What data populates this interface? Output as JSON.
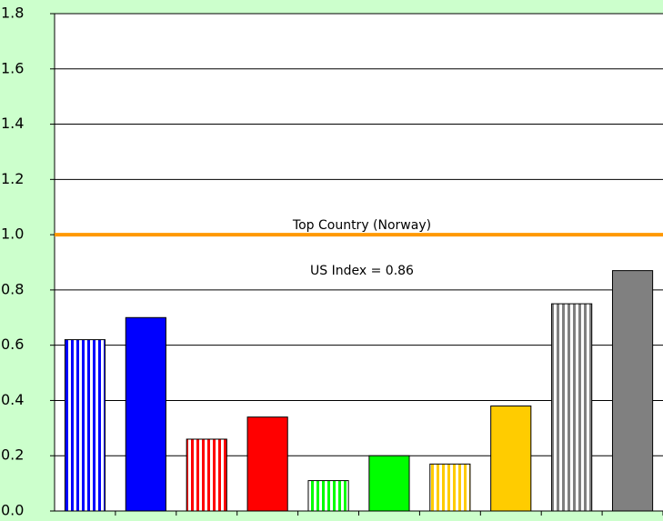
{
  "chart_data": {
    "type": "bar",
    "categories": [
      null,
      null,
      null,
      null,
      null,
      null,
      null,
      null,
      null,
      null
    ],
    "values": [
      0.62,
      0.7,
      0.26,
      0.34,
      0.11,
      0.2,
      0.17,
      0.38,
      0.75,
      0.87
    ],
    "colors": [
      "#0000ff",
      "#0000ff",
      "#ff0000",
      "#ff0000",
      "#00ff00",
      "#00ff00",
      "#ffcc00",
      "#ffcc00",
      "#808080",
      "#808080"
    ],
    "striped": [
      true,
      false,
      true,
      false,
      true,
      false,
      true,
      false,
      true,
      false
    ],
    "ylim": [
      0,
      1.8
    ],
    "yticks": [
      {
        "value": 0,
        "label": "0.0"
      },
      0.2,
      0.4,
      0.6,
      0.8,
      {
        "value": 1,
        "label": "1.0"
      },
      1.2,
      1.4,
      1.6,
      1.8
    ],
    "grid": true,
    "reference_line": {
      "value": 1,
      "color": "#ff9900"
    },
    "annotations": [
      "Top Country (Norway)",
      "US Index = 0.86"
    ]
  }
}
